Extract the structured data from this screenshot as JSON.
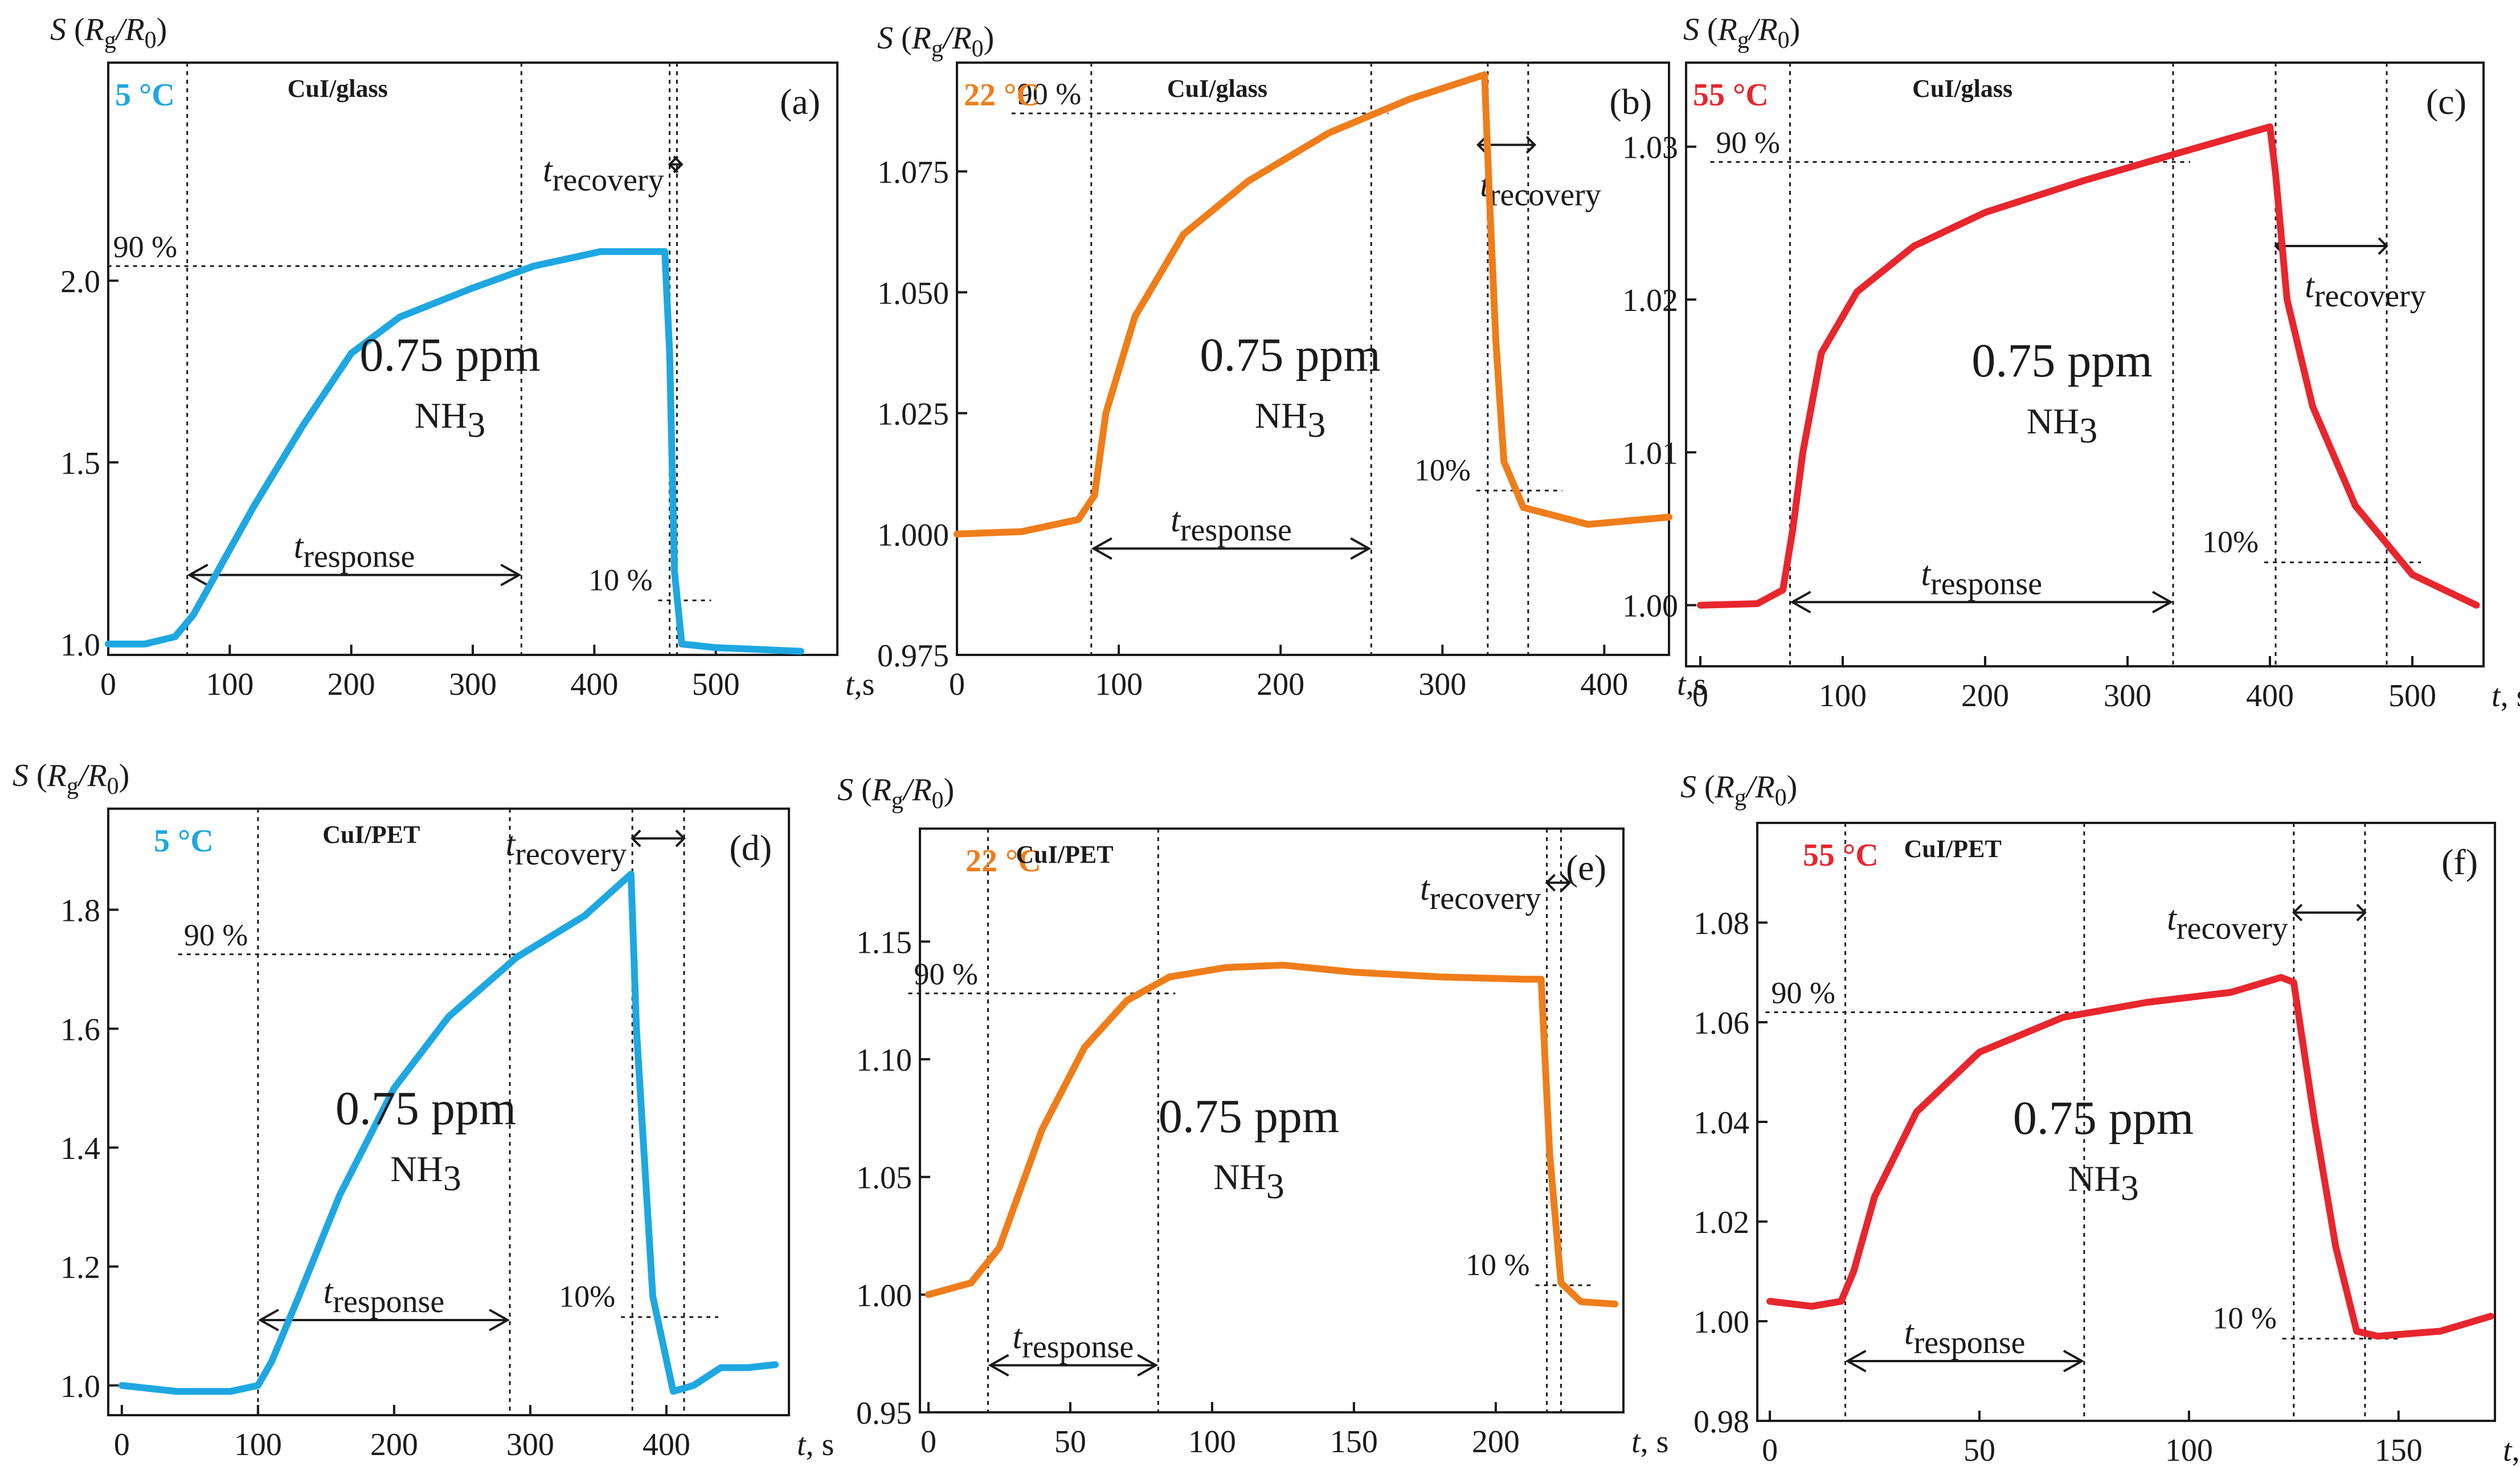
{
  "figure": {
    "y_axis_label": "S (Rg/R0)"
  },
  "chart_data": [
    {
      "type": "line",
      "panel": "(a)",
      "substrate": "CuI/glass",
      "temperature": "5 °C",
      "color": "#1ea7e1",
      "concentration": "0.75 ppm",
      "gas": "NH3",
      "xlabel": "t,s",
      "ylabel": "S (Rg/R0)",
      "xlim": [
        0,
        600
      ],
      "ylim": [
        0.97,
        2.6
      ],
      "x_ticks": [
        0,
        100,
        200,
        300,
        400,
        500
      ],
      "x_tick_labels": [
        "0",
        "100",
        "200",
        "300",
        "400",
        "500"
      ],
      "y_ticks": [
        1.0,
        1.5,
        2.0
      ],
      "y_tick_labels": [
        "1.0",
        "1.5",
        "2.0"
      ],
      "vlines": [
        65,
        340,
        462,
        468
      ],
      "level_90": {
        "label": "90 %",
        "y": 2.04
      },
      "level_10": {
        "label": "10 %",
        "y": 1.12
      },
      "response": {
        "label": "response",
        "x1": 65,
        "x2": 340,
        "y": 1.19
      },
      "recovery": {
        "label": "recovery",
        "x1": 462,
        "x2": 472,
        "y": 2.32
      },
      "x": [
        0,
        30,
        55,
        70,
        90,
        120,
        160,
        200,
        240,
        300,
        350,
        405,
        458,
        462,
        466,
        472,
        500,
        570
      ],
      "y": [
        1.0,
        1.0,
        1.02,
        1.08,
        1.2,
        1.38,
        1.6,
        1.8,
        1.9,
        1.98,
        2.04,
        2.08,
        2.08,
        1.8,
        1.2,
        1.0,
        0.99,
        0.98
      ]
    },
    {
      "type": "line",
      "panel": "(b)",
      "substrate": "CuI/glass",
      "temperature": "22 °C",
      "color": "#ef7d1a",
      "concentration": "0.75 ppm",
      "gas": "NH3",
      "xlabel": "t,s",
      "ylabel": "S (Rg/R0)",
      "xlim": [
        0,
        440
      ],
      "ylim": [
        0.975,
        1.0975
      ],
      "x_ticks": [
        0,
        100,
        200,
        300,
        400
      ],
      "x_tick_labels": [
        "0",
        "100",
        "200",
        "300",
        "400"
      ],
      "y_ticks": [
        0.975,
        1.0,
        1.025,
        1.05,
        1.075
      ],
      "y_tick_labels": [
        "0.975",
        "1.000",
        "1.025",
        "1.050",
        "1.075"
      ],
      "vlines": [
        83,
        256,
        328,
        353
      ],
      "level_90": {
        "label": "90 %",
        "y": 1.087
      },
      "level_10": {
        "label": "10%",
        "y": 1.009
      },
      "response": {
        "label": "response",
        "x1": 83,
        "x2": 256,
        "y": 0.997
      },
      "recovery": {
        "label": "recovery",
        "x1": 322,
        "x2": 357,
        "y": 1.0805
      },
      "x": [
        0,
        40,
        75,
        85,
        92,
        110,
        140,
        180,
        230,
        280,
        326,
        329,
        333,
        338,
        350,
        390,
        440
      ],
      "y": [
        1.0,
        1.0005,
        1.003,
        1.008,
        1.025,
        1.045,
        1.062,
        1.073,
        1.083,
        1.09,
        1.095,
        1.07,
        1.04,
        1.015,
        1.0055,
        1.002,
        1.0035
      ]
    },
    {
      "type": "line",
      "panel": "(c)",
      "substrate": "CuI/glass",
      "temperature": "55 °C",
      "color": "#e8262d",
      "concentration": "0.75 ppm",
      "gas": "NH3",
      "xlabel": "t, s",
      "ylabel": "S (Rg/R0)",
      "xlim": [
        -10,
        550
      ],
      "ylim": [
        0.996,
        1.0355
      ],
      "x_ticks": [
        0,
        100,
        200,
        300,
        400,
        500
      ],
      "x_tick_labels": [
        "0",
        "100",
        "200",
        "300",
        "400",
        "500"
      ],
      "y_ticks": [
        1.0,
        1.01,
        1.02,
        1.03
      ],
      "y_tick_labels": [
        "1.00",
        "1.01",
        "1.02",
        "1.03"
      ],
      "vlines": [
        63,
        332,
        404,
        482
      ],
      "level_90": {
        "label": "90 %",
        "y": 1.029
      },
      "level_10": {
        "label": "10%",
        "y": 1.0028
      },
      "response": {
        "label": "response",
        "x1": 63,
        "x2": 332,
        "y": 1.0002
      },
      "recovery": {
        "label": "recovery",
        "x1": 404,
        "x2": 482,
        "y": 1.0235
      },
      "x": [
        0,
        40,
        58,
        65,
        72,
        85,
        110,
        150,
        200,
        270,
        340,
        400,
        404,
        412,
        430,
        460,
        500,
        545
      ],
      "y": [
        1.0,
        1.0001,
        1.001,
        1.005,
        1.01,
        1.0165,
        1.0205,
        1.0235,
        1.0257,
        1.0278,
        1.0297,
        1.0313,
        1.0282,
        1.02,
        1.013,
        1.0065,
        1.002,
        1.0
      ]
    },
    {
      "type": "line",
      "panel": "(d)",
      "substrate": "CuI/PET",
      "temperature": "5 °C",
      "color": "#1ea7e1",
      "concentration": "0.75 ppm",
      "gas": "NH3",
      "xlabel": "t, s",
      "ylabel": "S (Rg/R0)",
      "xlim": [
        -10,
        490
      ],
      "ylim": [
        0.95,
        1.97
      ],
      "x_ticks": [
        0,
        100,
        200,
        300,
        400
      ],
      "x_tick_labels": [
        "0",
        "100",
        "200",
        "300",
        "400"
      ],
      "y_ticks": [
        1.0,
        1.2,
        1.4,
        1.6,
        1.8
      ],
      "y_tick_labels": [
        "1.0",
        "1.2",
        "1.4",
        "1.6",
        "1.8"
      ],
      "vlines": [
        100,
        285,
        375,
        413
      ],
      "level_90": {
        "label": "90 %",
        "y": 1.725
      },
      "level_10": {
        "label": "10%",
        "y": 1.115
      },
      "response": {
        "label": "response",
        "x1": 100,
        "x2": 285,
        "y": 1.11
      },
      "recovery": {
        "label": "recovery",
        "x1": 375,
        "x2": 413,
        "y": 1.92
      },
      "x": [
        0,
        40,
        80,
        100,
        110,
        130,
        160,
        200,
        240,
        290,
        340,
        374,
        378,
        390,
        405,
        420,
        440,
        460,
        480
      ],
      "y": [
        1.0,
        0.99,
        0.99,
        1.0,
        1.04,
        1.15,
        1.32,
        1.5,
        1.62,
        1.72,
        1.79,
        1.86,
        1.6,
        1.15,
        0.99,
        1.0,
        1.03,
        1.03,
        1.035
      ]
    },
    {
      "type": "line",
      "panel": "(e)",
      "substrate": "CuI/PET",
      "temperature": "22 °C",
      "color": "#ef7d1a",
      "concentration": "0.75 ppm",
      "gas": "NH3",
      "xlabel": "t, s",
      "ylabel": "S (Rg/R0)",
      "xlim": [
        -3,
        245
      ],
      "ylim": [
        0.95,
        1.198
      ],
      "x_ticks": [
        0,
        50,
        100,
        150,
        200
      ],
      "x_tick_labels": [
        "0",
        "50",
        "100",
        "150",
        "200"
      ],
      "y_ticks": [
        0.95,
        1.0,
        1.05,
        1.1,
        1.15
      ],
      "y_tick_labels": [
        "0.95",
        "1.00",
        "1.05",
        "1.10",
        "1.15"
      ],
      "vlines": [
        21,
        81,
        218,
        223
      ],
      "level_90": {
        "label": "90 %",
        "y": 1.128
      },
      "level_10": {
        "label": "10 %",
        "y": 1.004
      },
      "response": {
        "label": "response",
        "x1": 21,
        "x2": 81,
        "y": 0.97
      },
      "recovery": {
        "label": "recovery",
        "x1": 218,
        "x2": 226,
        "y": 1.175
      },
      "x": [
        0,
        15,
        25,
        40,
        55,
        70,
        85,
        105,
        125,
        150,
        180,
        210,
        216,
        219,
        223,
        230,
        242
      ],
      "y": [
        1.0,
        1.005,
        1.02,
        1.07,
        1.105,
        1.125,
        1.135,
        1.139,
        1.14,
        1.137,
        1.135,
        1.134,
        1.134,
        1.06,
        1.005,
        0.997,
        0.996
      ]
    },
    {
      "type": "line",
      "panel": "(f)",
      "substrate": "CuI/PET",
      "temperature": "55 °C",
      "color": "#e8262d",
      "concentration": "0.75 ppm",
      "gas": "NH3",
      "xlabel": "t, s",
      "ylabel": "S (Rg/R0)",
      "xlim": [
        -3,
        173
      ],
      "ylim": [
        0.98,
        1.1
      ],
      "x_ticks": [
        0,
        50,
        100,
        150
      ],
      "x_tick_labels": [
        "0",
        "50",
        "100",
        "150"
      ],
      "y_ticks": [
        0.98,
        1.0,
        1.02,
        1.04,
        1.06,
        1.08
      ],
      "y_tick_labels": [
        "0.98",
        "1.00",
        "1.02",
        "1.04",
        "1.06",
        "1.08"
      ],
      "vlines": [
        18,
        75,
        125,
        142
      ],
      "level_90": {
        "label": "90 %",
        "y": 1.062
      },
      "level_10": {
        "label": "10 %",
        "y": 0.9965
      },
      "response": {
        "label": "response",
        "x1": 18,
        "x2": 75,
        "y": 0.992
      },
      "recovery": {
        "label": "recovery",
        "x1": 125,
        "x2": 142,
        "y": 1.082
      },
      "x": [
        0,
        10,
        17,
        20,
        25,
        35,
        50,
        70,
        90,
        110,
        122,
        125,
        130,
        135,
        140,
        145,
        160,
        172
      ],
      "y": [
        1.004,
        1.003,
        1.004,
        1.01,
        1.025,
        1.042,
        1.054,
        1.061,
        1.064,
        1.066,
        1.069,
        1.068,
        1.04,
        1.015,
        0.998,
        0.997,
        0.998,
        1.001
      ]
    }
  ]
}
